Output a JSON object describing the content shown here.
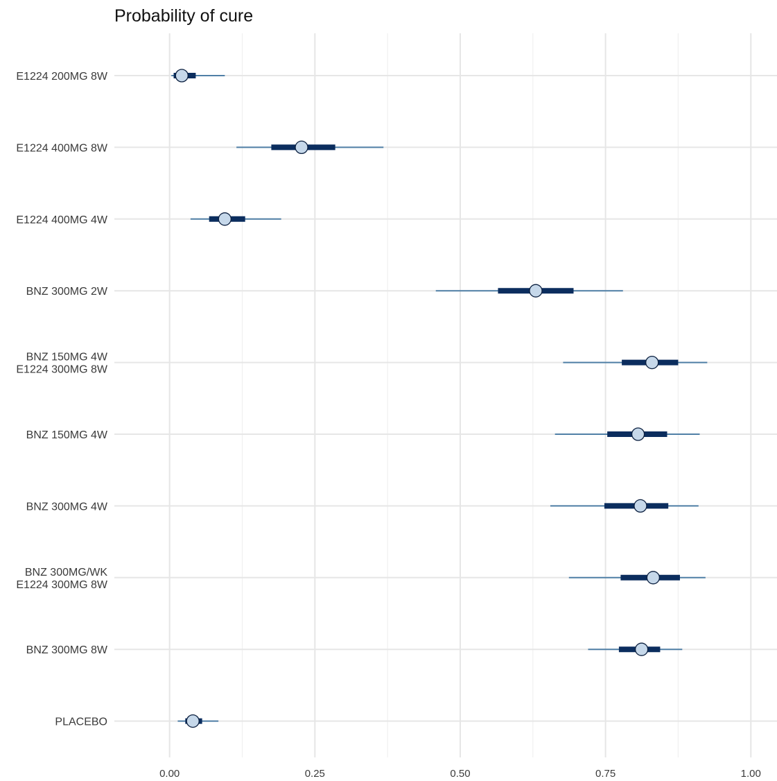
{
  "chart_data": {
    "type": "forest",
    "title": "Probability of cure",
    "xlabel": "",
    "ylabel": "",
    "xlim": [
      -0.095,
      1.045
    ],
    "x_ticks": [
      0.0,
      0.25,
      0.5,
      0.75,
      1.0
    ],
    "x_tick_labels": [
      "0.00",
      "0.25",
      "0.50",
      "0.75",
      "1.00"
    ],
    "grid": true,
    "colors": {
      "inner_interval": "#0b2d5e",
      "outer_interval": "#4f7fa6",
      "point_fill": "#c6d8ea",
      "point_stroke": "#0b1f3f",
      "grid": "#e6e6e6"
    },
    "series": [
      {
        "label": [
          "E1224 200MG 8W"
        ],
        "median": 0.021,
        "inner": [
          0.007,
          0.045
        ],
        "outer": [
          0.003,
          0.095
        ]
      },
      {
        "label": [
          "E1224 400MG 8W"
        ],
        "median": 0.227,
        "inner": [
          0.175,
          0.285
        ],
        "outer": [
          0.115,
          0.368
        ]
      },
      {
        "label": [
          "E1224 400MG 4W"
        ],
        "median": 0.095,
        "inner": [
          0.068,
          0.13
        ],
        "outer": [
          0.036,
          0.192
        ]
      },
      {
        "label": [
          "BNZ 300MG 2W"
        ],
        "median": 0.63,
        "inner": [
          0.565,
          0.695
        ],
        "outer": [
          0.458,
          0.78
        ]
      },
      {
        "label": [
          "BNZ 150MG 4W",
          "E1224 300MG 8W"
        ],
        "median": 0.83,
        "inner": [
          0.778,
          0.875
        ],
        "outer": [
          0.677,
          0.925
        ]
      },
      {
        "label": [
          "BNZ 150MG 4W"
        ],
        "median": 0.806,
        "inner": [
          0.753,
          0.856
        ],
        "outer": [
          0.663,
          0.912
        ]
      },
      {
        "label": [
          "BNZ 300MG 4W"
        ],
        "median": 0.81,
        "inner": [
          0.748,
          0.858
        ],
        "outer": [
          0.655,
          0.91
        ]
      },
      {
        "label": [
          "BNZ 300MG/WK",
          "E1224 300MG 8W"
        ],
        "median": 0.832,
        "inner": [
          0.776,
          0.878
        ],
        "outer": [
          0.687,
          0.922
        ]
      },
      {
        "label": [
          "BNZ 300MG 8W"
        ],
        "median": 0.812,
        "inner": [
          0.773,
          0.844
        ],
        "outer": [
          0.72,
          0.882
        ]
      },
      {
        "label": [
          "PLACEBO"
        ],
        "median": 0.04,
        "inner": [
          0.027,
          0.056
        ],
        "outer": [
          0.014,
          0.084
        ]
      }
    ]
  }
}
